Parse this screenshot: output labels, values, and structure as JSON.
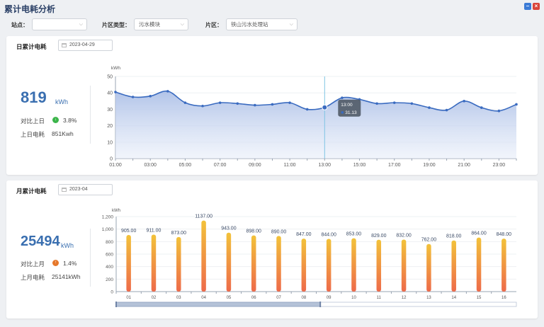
{
  "title": "累计电耗分析",
  "filters": {
    "site_label": "站点：",
    "site_value": "",
    "zone_type_label": "片区类型：",
    "zone_type_value": "污水模块",
    "zone_label": "片区：",
    "zone_value": "铁山污水处理站"
  },
  "daily": {
    "title": "日累计电耗",
    "date": "2023-04-29",
    "value": "819",
    "unit": "kWh",
    "compare_label": "对比上日",
    "compare_direction": "down",
    "compare_icon": "↓",
    "compare_pct": "3.8%",
    "prev_label": "上日电耗",
    "prev_value": "851Kwh",
    "tooltip": {
      "time": "13:00",
      "value": "31.13"
    }
  },
  "monthly": {
    "title": "月累计电耗",
    "date": "2023-04",
    "value": "25494",
    "unit": "kWh",
    "compare_label": "对比上月",
    "compare_direction": "up",
    "compare_icon": "↑",
    "compare_pct": "1.4%",
    "prev_label": "上月电耗",
    "prev_value": "25141kWh"
  },
  "chart_data": [
    {
      "type": "area",
      "ylabel": "kWh",
      "ylim": [
        0,
        50
      ],
      "yticks": [
        0,
        10,
        20,
        30,
        40,
        50
      ],
      "x": [
        "01:00",
        "02:00",
        "03:00",
        "04:00",
        "05:00",
        "06:00",
        "07:00",
        "08:00",
        "09:00",
        "10:00",
        "11:00",
        "12:00",
        "13:00",
        "14:00",
        "15:00",
        "16:00",
        "17:00",
        "18:00",
        "19:00",
        "20:00",
        "21:00",
        "22:00",
        "23:00",
        "24:00"
      ],
      "xtick_labels": [
        "01:00",
        "03:00",
        "05:00",
        "07:00",
        "09:00",
        "11:00",
        "13:00",
        "15:00",
        "17:00",
        "19:00",
        "21:00",
        "23:00"
      ],
      "values": [
        40.5,
        37.5,
        38,
        41,
        34,
        32,
        34,
        33.5,
        32.5,
        33,
        34,
        30,
        31.13,
        37,
        36,
        33.5,
        34,
        33.5,
        31,
        29.5,
        35,
        31,
        29,
        33
      ],
      "highlight_index": 12,
      "color": "#3a6bc0"
    },
    {
      "type": "bar",
      "ylabel": "kWh",
      "ylim": [
        0,
        1200
      ],
      "yticks": [
        0,
        200,
        400,
        600,
        800,
        1000,
        1200
      ],
      "categories": [
        "01",
        "02",
        "03",
        "04",
        "05",
        "06",
        "07",
        "08",
        "09",
        "10",
        "11",
        "12",
        "13",
        "14",
        "15",
        "16"
      ],
      "values": [
        905,
        911,
        873,
        1137,
        943,
        898,
        890,
        847,
        844,
        853,
        829,
        832,
        762,
        818,
        864,
        848
      ],
      "value_labels": [
        "905.00",
        "911.00",
        "873.00",
        "1137.00",
        "943.00",
        "898.00",
        "890.00",
        "847.00",
        "844.00",
        "853.00",
        "829.00",
        "832.00",
        "762.00",
        "818.00",
        "864.00",
        "848.00"
      ],
      "colors": {
        "top": "#f2c23a",
        "bottom": "#ee6a4a"
      }
    }
  ]
}
